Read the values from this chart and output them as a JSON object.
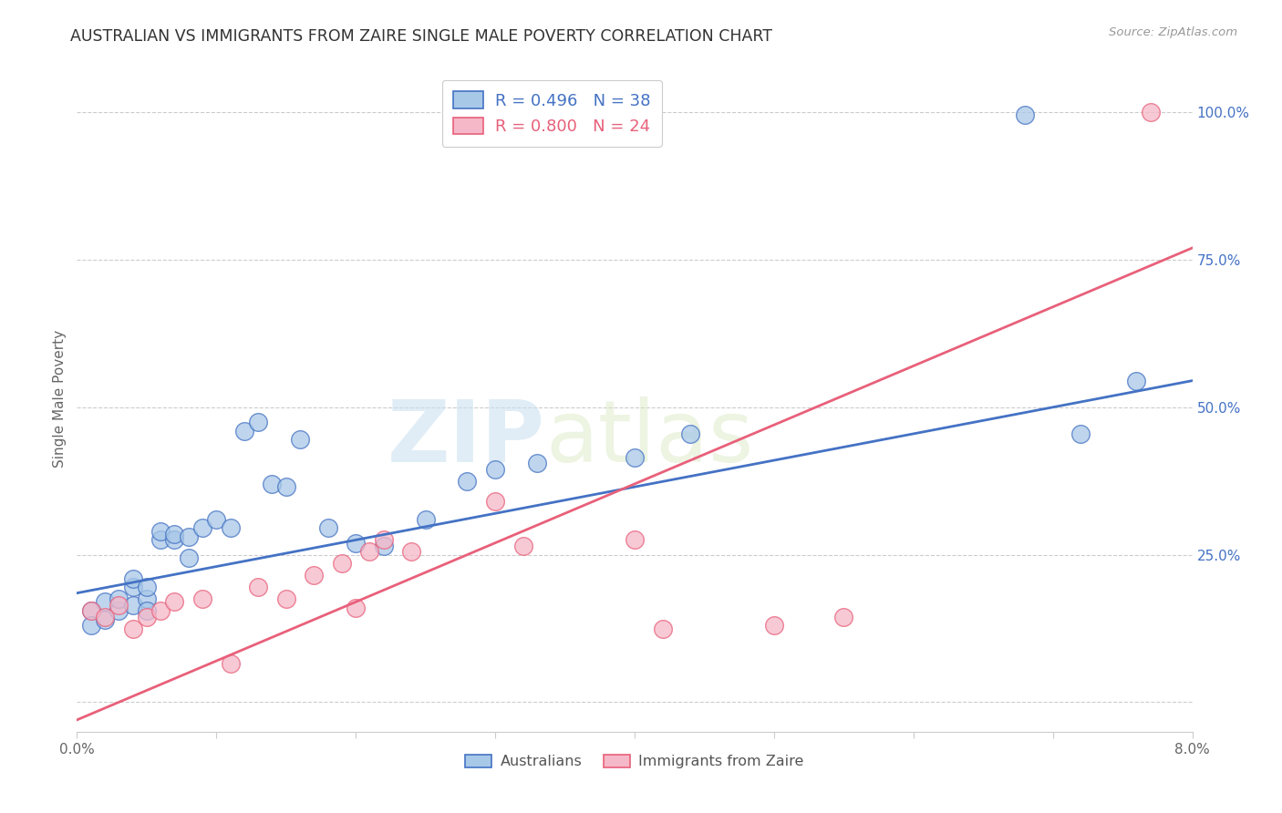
{
  "title": "AUSTRALIAN VS IMMIGRANTS FROM ZAIRE SINGLE MALE POVERTY CORRELATION CHART",
  "source": "Source: ZipAtlas.com",
  "ylabel": "Single Male Poverty",
  "y_ticks": [
    0.0,
    0.25,
    0.5,
    0.75,
    1.0
  ],
  "y_tick_labels": [
    "",
    "25.0%",
    "50.0%",
    "75.0%",
    "100.0%"
  ],
  "xlim": [
    0.0,
    0.08
  ],
  "ylim": [
    -0.05,
    1.08
  ],
  "legend_label_blue": "R = 0.496   N = 38",
  "legend_label_pink": "R = 0.800   N = 24",
  "color_blue": "#a8c8e8",
  "color_pink": "#f5b8c8",
  "line_color_blue": "#4472c4",
  "line_color_pink": "#e8607a",
  "watermark_zip": "ZIP",
  "watermark_atlas": "atlas",
  "legend_items": [
    "Australians",
    "Immigrants from Zaire"
  ],
  "blue_x": [
    0.001,
    0.001,
    0.002,
    0.002,
    0.003,
    0.003,
    0.004,
    0.004,
    0.004,
    0.005,
    0.005,
    0.005,
    0.006,
    0.006,
    0.007,
    0.007,
    0.008,
    0.008,
    0.009,
    0.01,
    0.011,
    0.012,
    0.013,
    0.014,
    0.015,
    0.016,
    0.018,
    0.02,
    0.022,
    0.025,
    0.028,
    0.03,
    0.033,
    0.04,
    0.044,
    0.068,
    0.072,
    0.076
  ],
  "blue_y": [
    0.155,
    0.13,
    0.14,
    0.17,
    0.155,
    0.175,
    0.165,
    0.195,
    0.21,
    0.175,
    0.195,
    0.155,
    0.275,
    0.29,
    0.275,
    0.285,
    0.245,
    0.28,
    0.295,
    0.31,
    0.295,
    0.46,
    0.475,
    0.37,
    0.365,
    0.445,
    0.295,
    0.27,
    0.265,
    0.31,
    0.375,
    0.395,
    0.405,
    0.415,
    0.455,
    0.995,
    0.455,
    0.545
  ],
  "pink_x": [
    0.001,
    0.002,
    0.003,
    0.004,
    0.005,
    0.006,
    0.007,
    0.009,
    0.011,
    0.013,
    0.015,
    0.017,
    0.019,
    0.02,
    0.021,
    0.022,
    0.024,
    0.03,
    0.032,
    0.04,
    0.042,
    0.05,
    0.055,
    0.077
  ],
  "pink_y": [
    0.155,
    0.145,
    0.165,
    0.125,
    0.145,
    0.155,
    0.17,
    0.175,
    0.065,
    0.195,
    0.175,
    0.215,
    0.235,
    0.16,
    0.255,
    0.275,
    0.255,
    0.34,
    0.265,
    0.275,
    0.125,
    0.13,
    0.145,
    1.0
  ],
  "blue_line_x0": 0.0,
  "blue_line_y0": 0.185,
  "blue_line_x1": 0.08,
  "blue_line_y1": 0.545,
  "pink_line_x0": 0.0,
  "pink_line_y0": -0.03,
  "pink_line_x1": 0.08,
  "pink_line_y1": 0.77
}
